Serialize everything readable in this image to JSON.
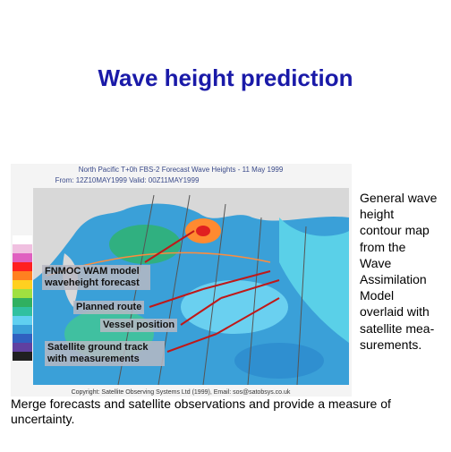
{
  "title": "Wave height prediction",
  "figure": {
    "header": "North Pacific T+0h FBS-2 Forecast Wave Heights - 11 May 1999",
    "subheader": "From: 12Z10MAY1999    Valid: 00Z11MAY1999",
    "labels": [
      "FNMOC WAM model waveheight forecast",
      "Planned route",
      "Vessel position",
      "Satellite ground track with measurements"
    ],
    "copyright": "Copyright: Satellite Observing Systems Ltd (1999), Email: sos@satobsys.co.uk"
  },
  "side_text": [
    "General wave",
    "height",
    "contour map",
    "from the",
    "Wave",
    "Assimilation",
    "Model",
    "overlaid with",
    "satellite mea-",
    "surements."
  ],
  "bottom_text": "Merge forecasts and satellite observations and provide a measure of uncertainty."
}
